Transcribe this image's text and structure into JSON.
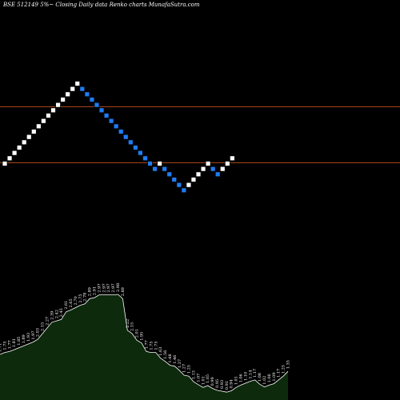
{
  "chart_data": {
    "type": "renko",
    "title": "BSE 512149 5%~ Closing Daily data  Renko  charts MunafaSutra.com",
    "colors": {
      "background": "#000000",
      "up_brick": "#ffffff",
      "down_brick": "#1e7df5",
      "reference_line": "#b34a1c",
      "volume_fill": "#0d2a0d",
      "volume_stroke": "#ffffff",
      "text": "#ffffff"
    },
    "reference_lines": [
      3.0,
      2.37
    ],
    "bricks": [
      {
        "dir": "up",
        "value": 2.36
      },
      {
        "dir": "up",
        "value": 2.42
      },
      {
        "dir": "up",
        "value": 2.48
      },
      {
        "dir": "up",
        "value": 2.54
      },
      {
        "dir": "up",
        "value": 2.6
      },
      {
        "dir": "up",
        "value": 2.66
      },
      {
        "dir": "up",
        "value": 2.72
      },
      {
        "dir": "up",
        "value": 2.78
      },
      {
        "dir": "up",
        "value": 2.84
      },
      {
        "dir": "up",
        "value": 2.9
      },
      {
        "dir": "up",
        "value": 2.96
      },
      {
        "dir": "up",
        "value": 3.02
      },
      {
        "dir": "up",
        "value": 3.08
      },
      {
        "dir": "up",
        "value": 3.14
      },
      {
        "dir": "up",
        "value": 3.2
      },
      {
        "dir": "up",
        "value": 3.26
      },
      {
        "dir": "down",
        "value": 3.2
      },
      {
        "dir": "down",
        "value": 3.14
      },
      {
        "dir": "down",
        "value": 3.08
      },
      {
        "dir": "down",
        "value": 3.02
      },
      {
        "dir": "down",
        "value": 2.96
      },
      {
        "dir": "down",
        "value": 2.9
      },
      {
        "dir": "down",
        "value": 2.84
      },
      {
        "dir": "down",
        "value": 2.78
      },
      {
        "dir": "down",
        "value": 2.72
      },
      {
        "dir": "down",
        "value": 2.66
      },
      {
        "dir": "down",
        "value": 2.6
      },
      {
        "dir": "down",
        "value": 2.54
      },
      {
        "dir": "down",
        "value": 2.48
      },
      {
        "dir": "down",
        "value": 2.42
      },
      {
        "dir": "down",
        "value": 2.36
      },
      {
        "dir": "down",
        "value": 2.3
      },
      {
        "dir": "up",
        "value": 2.36
      },
      {
        "dir": "down",
        "value": 2.3
      },
      {
        "dir": "down",
        "value": 2.24
      },
      {
        "dir": "down",
        "value": 2.18
      },
      {
        "dir": "down",
        "value": 2.12
      },
      {
        "dir": "down",
        "value": 2.06
      },
      {
        "dir": "up",
        "value": 2.12
      },
      {
        "dir": "up",
        "value": 2.18
      },
      {
        "dir": "up",
        "value": 2.24
      },
      {
        "dir": "up",
        "value": 2.3
      },
      {
        "dir": "up",
        "value": 2.36
      },
      {
        "dir": "down",
        "value": 2.3
      },
      {
        "dir": "down",
        "value": 2.24
      },
      {
        "dir": "up",
        "value": 2.3
      },
      {
        "dir": "up",
        "value": 2.36
      },
      {
        "dir": "up",
        "value": 2.42
      }
    ],
    "price_labels": [
      "1.71",
      "1.75",
      "1.77",
      "1.81",
      "1.85",
      "1.89",
      "1.93",
      "1.97",
      "2.03",
      "2.15",
      "2.27",
      "2.39",
      "2.42",
      "2.45",
      "2.61",
      "2.65",
      "2.70",
      "2.75",
      "2.78",
      "2.89",
      "2.91",
      "2.97",
      "2.97",
      "2.97",
      "2.97",
      "2.98",
      "2.89",
      "2.22",
      "2.15",
      "2.01",
      "1.95",
      "1.77",
      "1.75",
      "1.75",
      "1.63",
      "1.56",
      "1.48",
      "1.46",
      "1.37",
      "1.27",
      "1.25",
      "1.13",
      "1.07",
      "1.01",
      "1.05",
      "0.99",
      "0.95",
      "0.93",
      "0.91",
      "0.94",
      "1.01",
      "1.06",
      "1.10",
      "1.14",
      "1.17",
      "1.08",
      "1.02",
      "1.06",
      "1.09",
      "1.17",
      "1.25",
      "1.35"
    ]
  }
}
